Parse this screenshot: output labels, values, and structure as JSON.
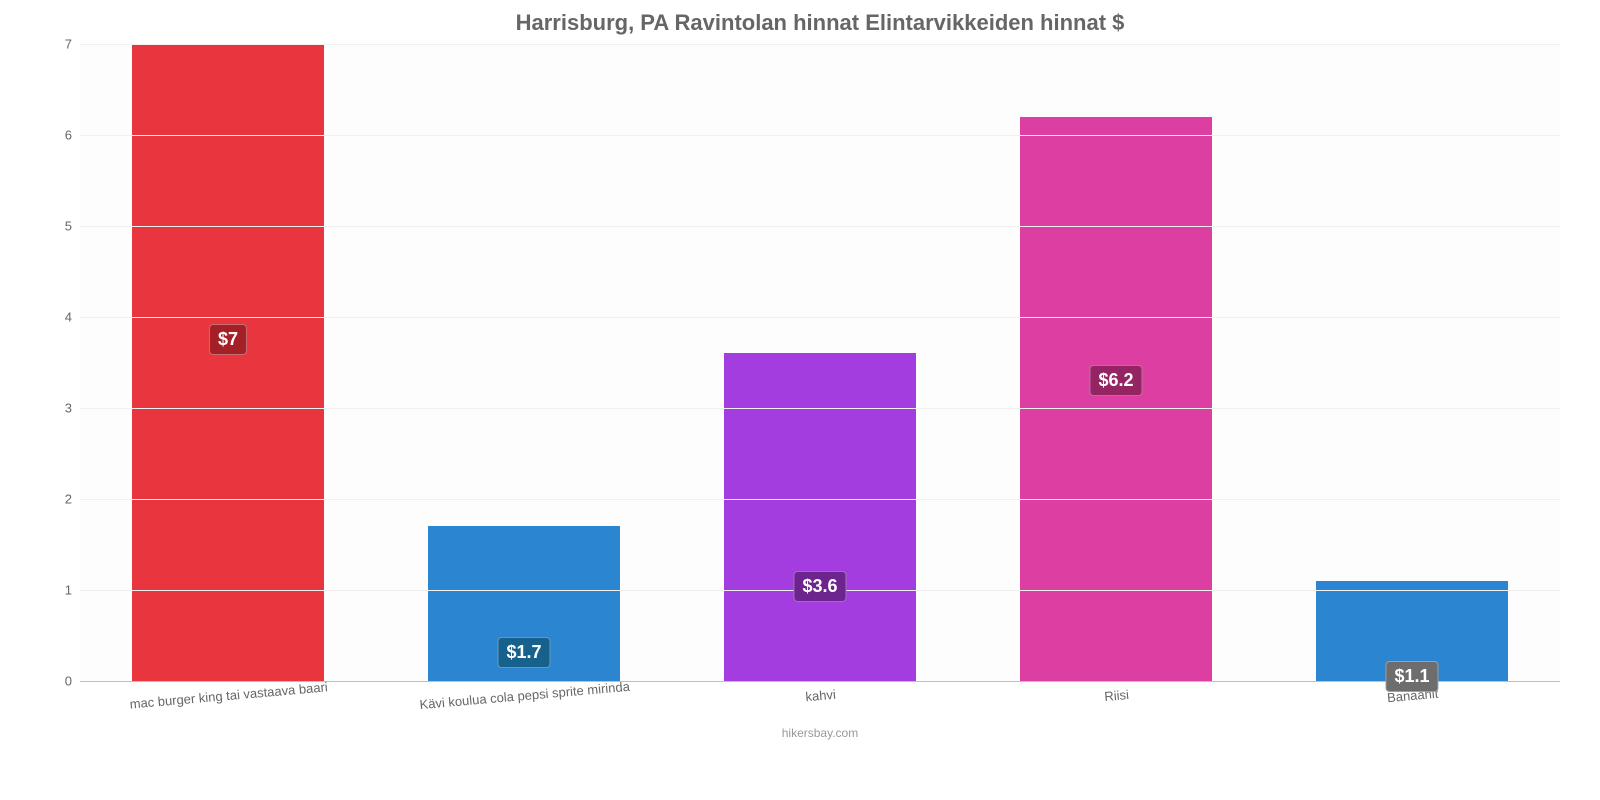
{
  "chart": {
    "type": "bar",
    "title": "Harrisburg, PA Ravintolan hinnat Elintarvikkeiden hinnat $",
    "title_color": "#666666",
    "title_fontsize": 22,
    "background_color": "#ffffff",
    "plot_background": "#fdfdfd",
    "grid_color": "#f0f0f0",
    "axis_color": "#c0c0c0",
    "tick_color": "#666666",
    "tick_fontsize": 13,
    "ylim": [
      0,
      7
    ],
    "ytick_step": 1,
    "yticks": [
      0,
      1,
      2,
      3,
      4,
      5,
      6,
      7
    ],
    "bar_width_pct": 13,
    "bar_gap_pct": 7,
    "categories": [
      "mac burger king tai vastaava baari",
      "Kävi koulua cola pepsi sprite mirinda",
      "kahvi",
      "Riisi",
      "Banaanit"
    ],
    "values": [
      7,
      1.7,
      3.6,
      6.2,
      1.1
    ],
    "value_labels": [
      "$7",
      "$1.7",
      "$3.6",
      "$6.2",
      "$1.1"
    ],
    "bar_colors": [
      "#e8353e",
      "#2b85d0",
      "#a33de0",
      "#dd3ea1",
      "#2b85d0"
    ],
    "label_bg_colors": [
      "#a52026",
      "#17628d",
      "#6d248e",
      "#942462",
      "#6d6d6d"
    ],
    "label_text_color": "#ffffff",
    "label_fontsize": 18,
    "footer": "hikersbay.com",
    "footer_color": "#999999",
    "footer_fontsize": 12,
    "x_label_rotation_deg": -5
  }
}
